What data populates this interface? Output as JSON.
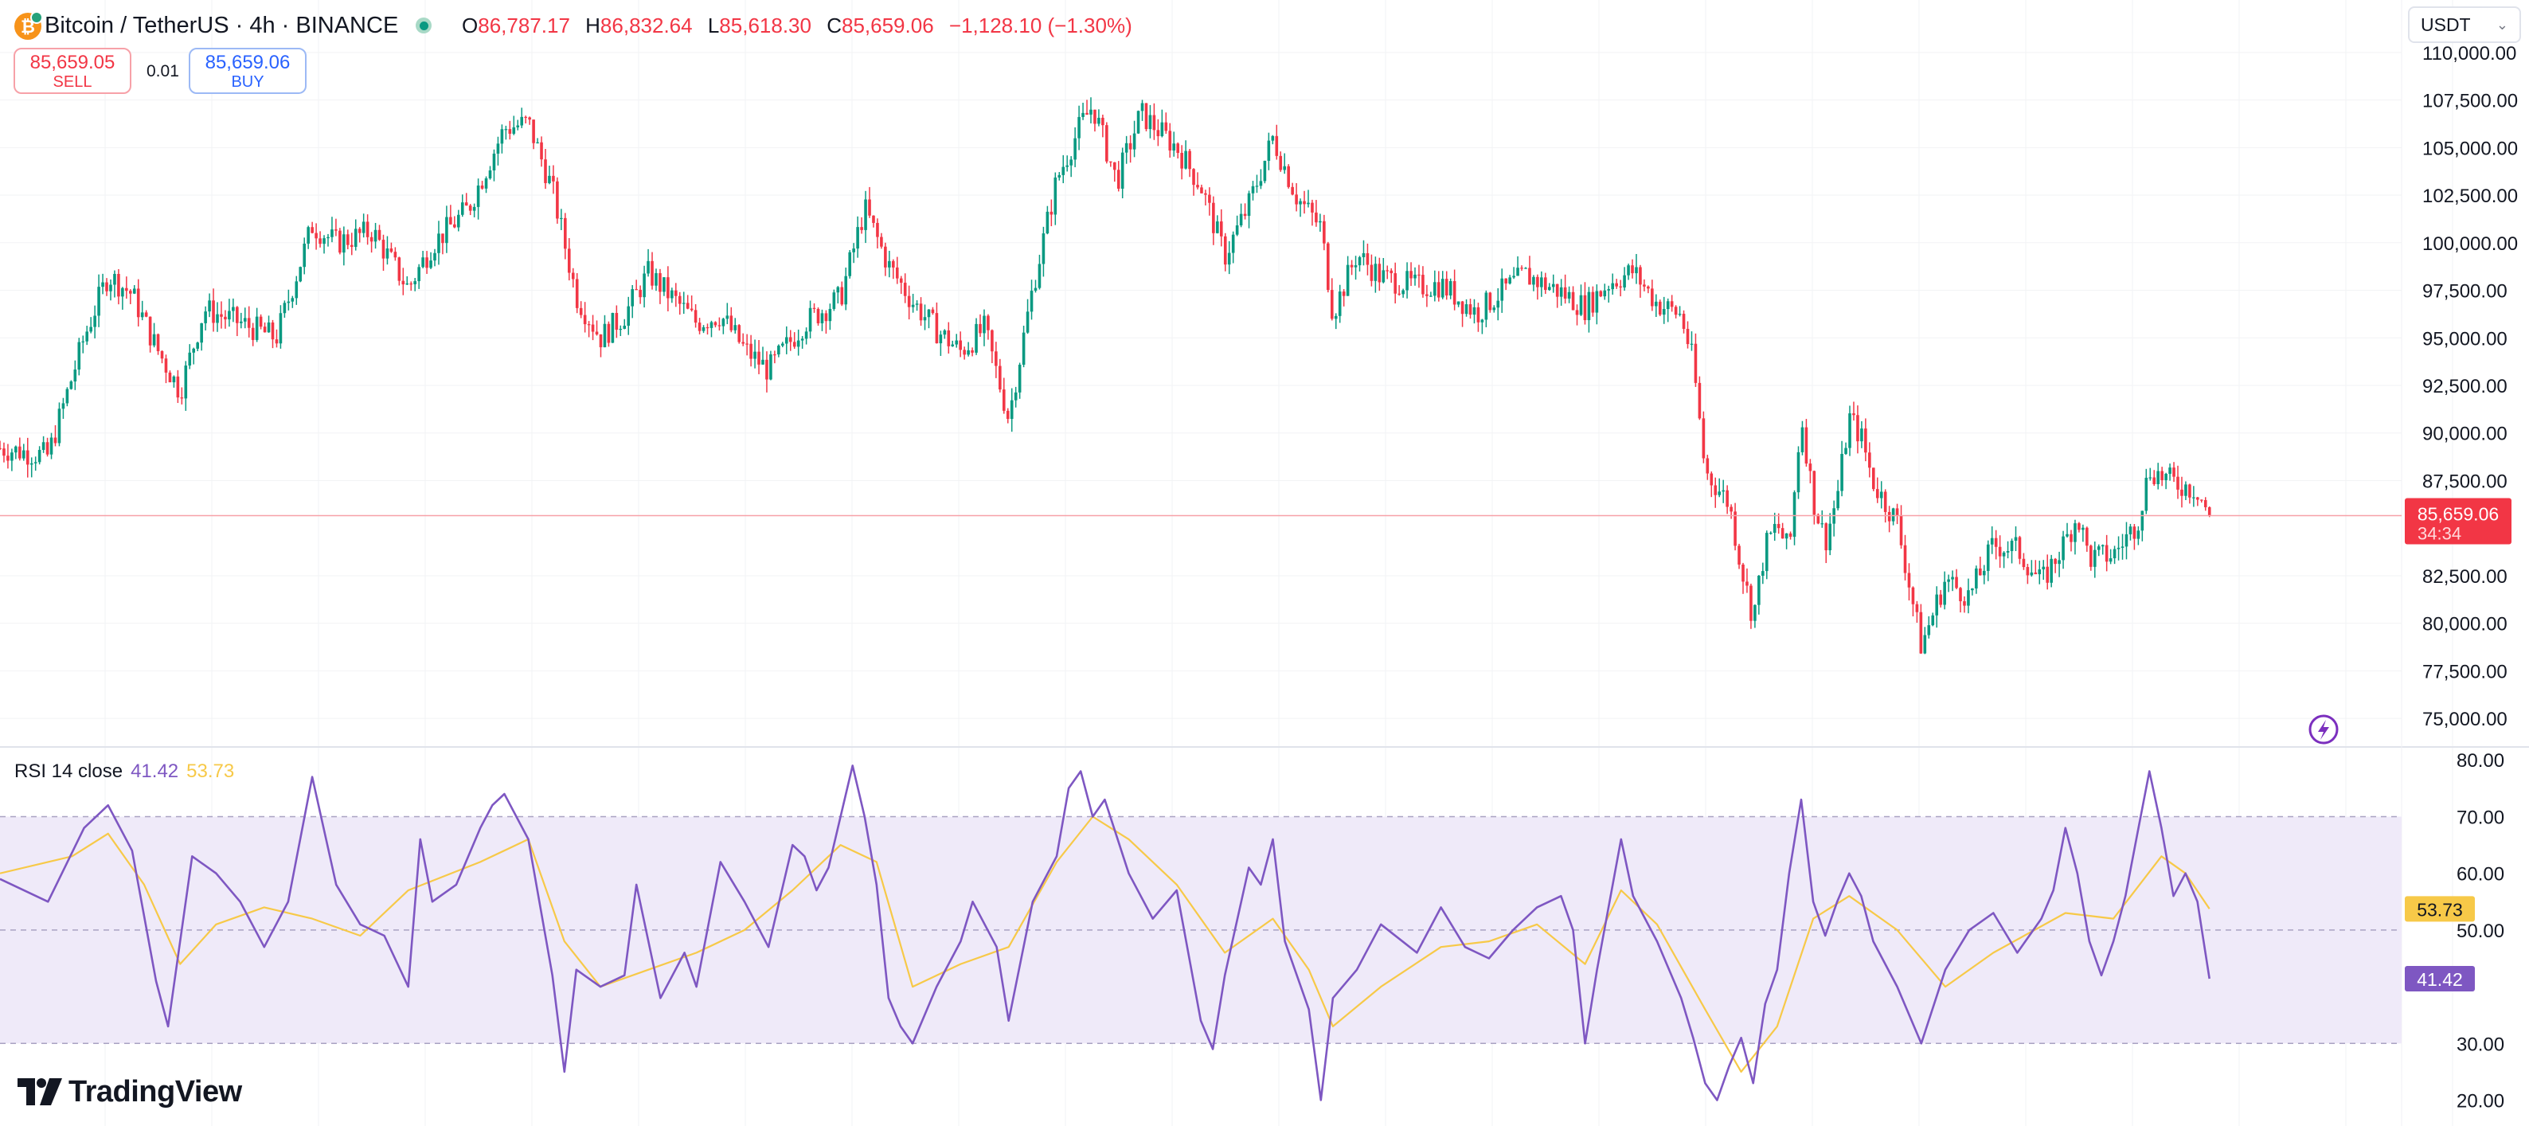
{
  "header": {
    "symbol_title": "Bitcoin / TetherUS · 4h · BINANCE",
    "ohlc": {
      "o_label": "O",
      "o_value": "86,787.17",
      "h_label": "H",
      "h_value": "86,832.64",
      "l_label": "L",
      "l_value": "85,618.30",
      "c_label": "C",
      "c_value": "85,659.06",
      "change": "−1,128.10 (−1.30%)"
    },
    "currency": "USDT"
  },
  "trade": {
    "sell_price": "85,659.05",
    "sell_label": "SELL",
    "spread": "0.01",
    "buy_price": "85,659.06",
    "buy_label": "BUY"
  },
  "price_axis": {
    "ticks": [
      "110,000.00",
      "107,500.00",
      "105,000.00",
      "102,500.00",
      "100,000.00",
      "97,500.00",
      "95,000.00",
      "92,500.00",
      "90,000.00",
      "87,500.00",
      "82,500.00",
      "80,000.00",
      "77,500.00",
      "75,000.00"
    ],
    "last_price_label": "85,659.06",
    "countdown": "34:34"
  },
  "rsi": {
    "title": "RSI 14 close",
    "rsi_value": "41.42",
    "ma_value": "53.73",
    "ticks": [
      "80.00",
      "70.00",
      "60.00",
      "50.00",
      "30.00",
      "20.00"
    ]
  },
  "brand": {
    "name": "TradingView"
  },
  "colors": {
    "up": "#089981",
    "down": "#f23645",
    "rsi": "#7e57c2",
    "rsi_ma": "#f7c948",
    "band_fill": "#efeaf9",
    "grid": "#f2f3f5"
  },
  "chart_data": [
    {
      "type": "candlestick",
      "symbol": "BTCUSDT",
      "timeframe": "4h",
      "ylim": [
        73500,
        111500
      ],
      "last_price": 85659.06,
      "y_ticks": [
        75000,
        77500,
        80000,
        82500,
        87500,
        90000,
        92500,
        95000,
        97500,
        100000,
        102500,
        105000,
        107500,
        110000
      ],
      "close_path": [
        [
          0,
          89200
        ],
        [
          0.02,
          88800
        ],
        [
          0.035,
          95000
        ],
        [
          0.045,
          98300
        ],
        [
          0.055,
          97300
        ],
        [
          0.065,
          94500
        ],
        [
          0.075,
          92200
        ],
        [
          0.085,
          96500
        ],
        [
          0.1,
          95800
        ],
        [
          0.115,
          95000
        ],
        [
          0.13,
          100900
        ],
        [
          0.14,
          100000
        ],
        [
          0.155,
          100600
        ],
        [
          0.17,
          97600
        ],
        [
          0.18,
          99900
        ],
        [
          0.195,
          101800
        ],
        [
          0.21,
          106000
        ],
        [
          0.22,
          106300
        ],
        [
          0.23,
          102800
        ],
        [
          0.24,
          97200
        ],
        [
          0.25,
          95000
        ],
        [
          0.26,
          96200
        ],
        [
          0.27,
          98400
        ],
        [
          0.28,
          97100
        ],
        [
          0.29,
          95800
        ],
        [
          0.3,
          96200
        ],
        [
          0.31,
          94400
        ],
        [
          0.32,
          93300
        ],
        [
          0.335,
          95800
        ],
        [
          0.35,
          97100
        ],
        [
          0.36,
          101800
        ],
        [
          0.37,
          98800
        ],
        [
          0.38,
          96900
        ],
        [
          0.39,
          95400
        ],
        [
          0.4,
          94300
        ],
        [
          0.41,
          95500
        ],
        [
          0.42,
          90800
        ],
        [
          0.43,
          97600
        ],
        [
          0.44,
          103300
        ],
        [
          0.45,
          106200
        ],
        [
          0.455,
          107200
        ],
        [
          0.465,
          103200
        ],
        [
          0.475,
          106800
        ],
        [
          0.49,
          105000
        ],
        [
          0.5,
          103000
        ],
        [
          0.51,
          99300
        ],
        [
          0.52,
          102000
        ],
        [
          0.53,
          105500
        ],
        [
          0.54,
          102400
        ],
        [
          0.55,
          100800
        ],
        [
          0.555,
          96300
        ],
        [
          0.565,
          99400
        ],
        [
          0.575,
          98200
        ],
        [
          0.59,
          97700
        ],
        [
          0.6,
          97800
        ],
        [
          0.615,
          96300
        ],
        [
          0.625,
          97400
        ],
        [
          0.635,
          98300
        ],
        [
          0.65,
          97400
        ],
        [
          0.66,
          96600
        ],
        [
          0.67,
          97900
        ],
        [
          0.68,
          98500
        ],
        [
          0.69,
          96800
        ],
        [
          0.7,
          96200
        ],
        [
          0.705,
          93700
        ],
        [
          0.71,
          88000
        ],
        [
          0.72,
          86300
        ],
        [
          0.725,
          83000
        ],
        [
          0.73,
          80300
        ],
        [
          0.735,
          84000
        ],
        [
          0.74,
          85200
        ],
        [
          0.745,
          83700
        ],
        [
          0.75,
          91000
        ],
        [
          0.755,
          86500
        ],
        [
          0.76,
          84300
        ],
        [
          0.765,
          86700
        ],
        [
          0.77,
          90800
        ],
        [
          0.775,
          89800
        ],
        [
          0.78,
          87400
        ],
        [
          0.79,
          85300
        ],
        [
          0.8,
          78800
        ],
        [
          0.81,
          82300
        ],
        [
          0.82,
          81400
        ],
        [
          0.83,
          84100
        ],
        [
          0.84,
          83900
        ],
        [
          0.85,
          82100
        ],
        [
          0.86,
          84300
        ],
        [
          0.865,
          85700
        ],
        [
          0.87,
          83400
        ],
        [
          0.88,
          83600
        ],
        [
          0.89,
          85300
        ],
        [
          0.895,
          88100
        ],
        [
          0.905,
          87400
        ],
        [
          0.915,
          87000
        ],
        [
          0.92,
          85659
        ]
      ]
    },
    {
      "type": "line",
      "title": "RSI 14 close",
      "ylim": [
        16,
        82
      ],
      "y_ticks": [
        20,
        30,
        50,
        60,
        70,
        80
      ],
      "band": [
        30,
        70
      ],
      "midline": 50,
      "series": [
        {
          "name": "RSI",
          "last_value": 41.42,
          "points": [
            [
              0,
              59
            ],
            [
              0.02,
              55
            ],
            [
              0.035,
              68
            ],
            [
              0.045,
              72
            ],
            [
              0.055,
              64
            ],
            [
              0.065,
              41
            ],
            [
              0.07,
              33
            ],
            [
              0.08,
              63
            ],
            [
              0.09,
              60
            ],
            [
              0.1,
              55
            ],
            [
              0.11,
              47
            ],
            [
              0.12,
              55
            ],
            [
              0.13,
              77
            ],
            [
              0.14,
              58
            ],
            [
              0.15,
              51
            ],
            [
              0.16,
              49
            ],
            [
              0.17,
              40
            ],
            [
              0.175,
              66
            ],
            [
              0.18,
              55
            ],
            [
              0.19,
              58
            ],
            [
              0.2,
              68
            ],
            [
              0.205,
              72
            ],
            [
              0.21,
              74
            ],
            [
              0.22,
              66
            ],
            [
              0.23,
              42
            ],
            [
              0.235,
              25
            ],
            [
              0.24,
              43
            ],
            [
              0.25,
              40
            ],
            [
              0.26,
              42
            ],
            [
              0.265,
              58
            ],
            [
              0.275,
              38
            ],
            [
              0.285,
              46
            ],
            [
              0.29,
              40
            ],
            [
              0.3,
              62
            ],
            [
              0.31,
              55
            ],
            [
              0.32,
              47
            ],
            [
              0.33,
              65
            ],
            [
              0.335,
              63
            ],
            [
              0.34,
              57
            ],
            [
              0.345,
              61
            ],
            [
              0.355,
              79
            ],
            [
              0.36,
              70
            ],
            [
              0.365,
              58
            ],
            [
              0.37,
              38
            ],
            [
              0.375,
              33
            ],
            [
              0.38,
              30
            ],
            [
              0.39,
              40
            ],
            [
              0.4,
              48
            ],
            [
              0.405,
              55
            ],
            [
              0.41,
              51
            ],
            [
              0.415,
              47
            ],
            [
              0.42,
              34
            ],
            [
              0.43,
              55
            ],
            [
              0.44,
              63
            ],
            [
              0.445,
              75
            ],
            [
              0.45,
              78
            ],
            [
              0.455,
              70
            ],
            [
              0.46,
              73
            ],
            [
              0.47,
              60
            ],
            [
              0.48,
              52
            ],
            [
              0.49,
              57
            ],
            [
              0.5,
              34
            ],
            [
              0.505,
              29
            ],
            [
              0.51,
              42
            ],
            [
              0.52,
              61
            ],
            [
              0.525,
              58
            ],
            [
              0.53,
              66
            ],
            [
              0.535,
              48
            ],
            [
              0.545,
              36
            ],
            [
              0.55,
              20
            ],
            [
              0.555,
              38
            ],
            [
              0.565,
              43
            ],
            [
              0.575,
              51
            ],
            [
              0.59,
              46
            ],
            [
              0.6,
              54
            ],
            [
              0.61,
              47
            ],
            [
              0.62,
              45
            ],
            [
              0.63,
              50
            ],
            [
              0.64,
              54
            ],
            [
              0.65,
              56
            ],
            [
              0.655,
              50
            ],
            [
              0.66,
              30
            ],
            [
              0.665,
              43
            ],
            [
              0.675,
              66
            ],
            [
              0.68,
              56
            ],
            [
              0.69,
              48
            ],
            [
              0.7,
              38
            ],
            [
              0.705,
              31
            ],
            [
              0.71,
              23
            ],
            [
              0.715,
              20
            ],
            [
              0.72,
              26
            ],
            [
              0.725,
              31
            ],
            [
              0.73,
              23
            ],
            [
              0.735,
              37
            ],
            [
              0.74,
              43
            ],
            [
              0.745,
              60
            ],
            [
              0.75,
              73
            ],
            [
              0.755,
              55
            ],
            [
              0.76,
              49
            ],
            [
              0.765,
              55
            ],
            [
              0.77,
              60
            ],
            [
              0.775,
              56
            ],
            [
              0.78,
              48
            ],
            [
              0.79,
              40
            ],
            [
              0.8,
              30
            ],
            [
              0.81,
              43
            ],
            [
              0.82,
              50
            ],
            [
              0.83,
              53
            ],
            [
              0.84,
              46
            ],
            [
              0.85,
              52
            ],
            [
              0.855,
              57
            ],
            [
              0.86,
              68
            ],
            [
              0.865,
              60
            ],
            [
              0.87,
              48
            ],
            [
              0.875,
              42
            ],
            [
              0.88,
              48
            ],
            [
              0.885,
              56
            ],
            [
              0.89,
              67
            ],
            [
              0.895,
              78
            ],
            [
              0.9,
              68
            ],
            [
              0.905,
              56
            ],
            [
              0.91,
              60
            ],
            [
              0.915,
              55
            ],
            [
              0.92,
              41.42
            ]
          ]
        },
        {
          "name": "RSI-based MA",
          "last_value": 53.73,
          "points": [
            [
              0,
              60
            ],
            [
              0.03,
              63
            ],
            [
              0.045,
              67
            ],
            [
              0.06,
              58
            ],
            [
              0.075,
              44
            ],
            [
              0.09,
              51
            ],
            [
              0.11,
              54
            ],
            [
              0.13,
              52
            ],
            [
              0.15,
              49
            ],
            [
              0.17,
              57
            ],
            [
              0.2,
              62
            ],
            [
              0.22,
              66
            ],
            [
              0.235,
              48
            ],
            [
              0.25,
              40
            ],
            [
              0.27,
              43
            ],
            [
              0.29,
              46
            ],
            [
              0.31,
              50
            ],
            [
              0.33,
              57
            ],
            [
              0.35,
              65
            ],
            [
              0.365,
              62
            ],
            [
              0.38,
              40
            ],
            [
              0.4,
              44
            ],
            [
              0.42,
              47
            ],
            [
              0.44,
              62
            ],
            [
              0.455,
              70
            ],
            [
              0.47,
              66
            ],
            [
              0.49,
              58
            ],
            [
              0.51,
              46
            ],
            [
              0.53,
              52
            ],
            [
              0.545,
              43
            ],
            [
              0.555,
              33
            ],
            [
              0.575,
              40
            ],
            [
              0.6,
              47
            ],
            [
              0.62,
              48
            ],
            [
              0.64,
              51
            ],
            [
              0.66,
              44
            ],
            [
              0.675,
              57
            ],
            [
              0.69,
              51
            ],
            [
              0.71,
              36
            ],
            [
              0.725,
              25
            ],
            [
              0.74,
              33
            ],
            [
              0.755,
              52
            ],
            [
              0.77,
              56
            ],
            [
              0.79,
              50
            ],
            [
              0.81,
              40
            ],
            [
              0.83,
              46
            ],
            [
              0.86,
              53
            ],
            [
              0.88,
              52
            ],
            [
              0.9,
              63
            ],
            [
              0.91,
              60
            ],
            [
              0.92,
              53.73
            ]
          ]
        }
      ]
    }
  ]
}
